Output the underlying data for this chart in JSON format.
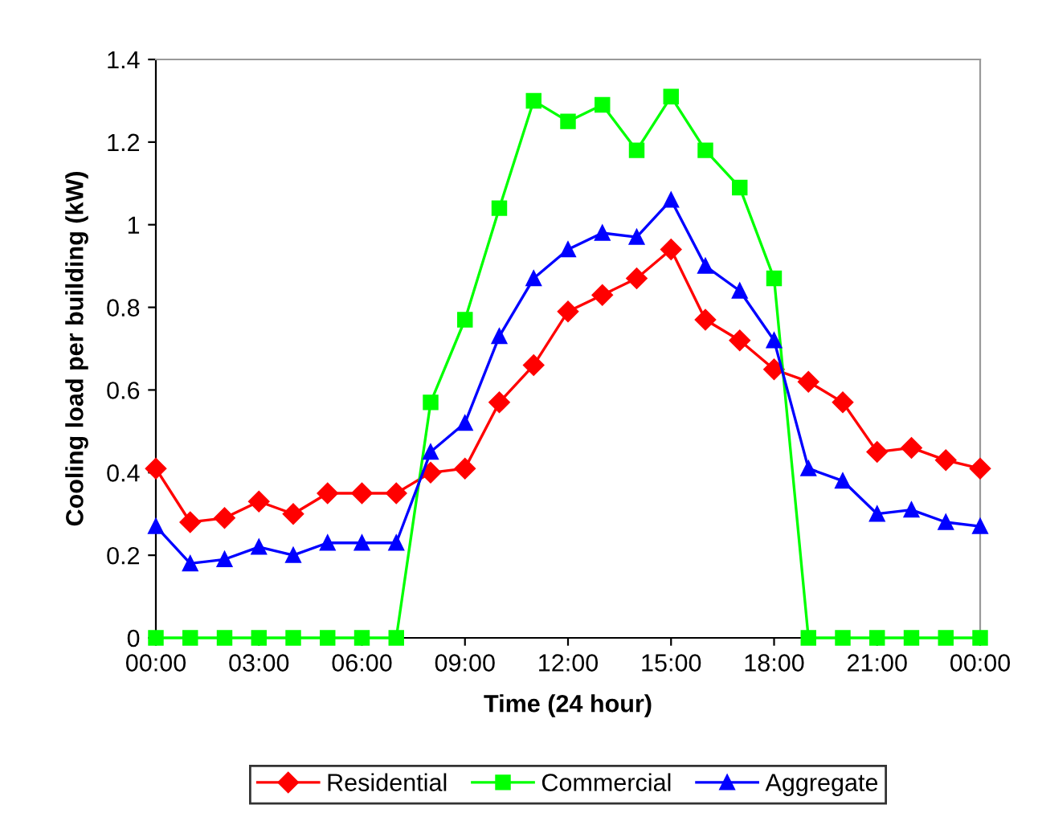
{
  "chart_data": {
    "type": "line",
    "xlabel": "Time (24 hour)",
    "ylabel": "Cooling load per building (kW)",
    "x": [
      0,
      1,
      2,
      3,
      4,
      5,
      6,
      7,
      8,
      9,
      10,
      11,
      12,
      13,
      14,
      15,
      16,
      17,
      18,
      19,
      20,
      21,
      22,
      23,
      24
    ],
    "xlim": [
      0,
      24
    ],
    "xticks": [
      {
        "value": 0,
        "label": "00:00"
      },
      {
        "value": 3,
        "label": "03:00"
      },
      {
        "value": 6,
        "label": "06:00"
      },
      {
        "value": 9,
        "label": "09:00"
      },
      {
        "value": 12,
        "label": "12:00"
      },
      {
        "value": 15,
        "label": "15:00"
      },
      {
        "value": 18,
        "label": "18:00"
      },
      {
        "value": 21,
        "label": "21:00"
      },
      {
        "value": 24,
        "label": "00:00"
      }
    ],
    "ylim": [
      0,
      1.4
    ],
    "yticks": [
      0,
      0.2,
      0.4,
      0.6,
      0.8,
      1,
      1.2,
      1.4
    ],
    "grid": false,
    "legend": "bottom",
    "line_style": "solid",
    "series": [
      {
        "name": "Residential",
        "color": "#ff0000",
        "marker": "diamond",
        "values": [
          0.41,
          0.28,
          0.29,
          0.33,
          0.3,
          0.35,
          0.35,
          0.35,
          0.4,
          0.41,
          0.57,
          0.66,
          0.79,
          0.83,
          0.87,
          0.94,
          0.77,
          0.72,
          0.65,
          0.62,
          0.57,
          0.45,
          0.46,
          0.43,
          0.41
        ]
      },
      {
        "name": "Commercial",
        "color": "#00ff00",
        "marker": "square",
        "values": [
          0,
          0,
          0,
          0,
          0,
          0,
          0,
          0,
          0.57,
          0.77,
          1.04,
          1.3,
          1.25,
          1.29,
          1.18,
          1.31,
          1.18,
          1.09,
          0.87,
          0,
          0,
          0,
          0,
          0,
          0
        ]
      },
      {
        "name": "Aggregate",
        "color": "#0000ff",
        "marker": "triangle",
        "values": [
          0.27,
          0.18,
          0.19,
          0.22,
          0.2,
          0.23,
          0.23,
          0.23,
          0.45,
          0.52,
          0.73,
          0.87,
          0.94,
          0.98,
          0.97,
          1.06,
          0.9,
          0.84,
          0.72,
          0.41,
          0.38,
          0.3,
          0.31,
          0.28,
          0.27
        ]
      }
    ]
  }
}
